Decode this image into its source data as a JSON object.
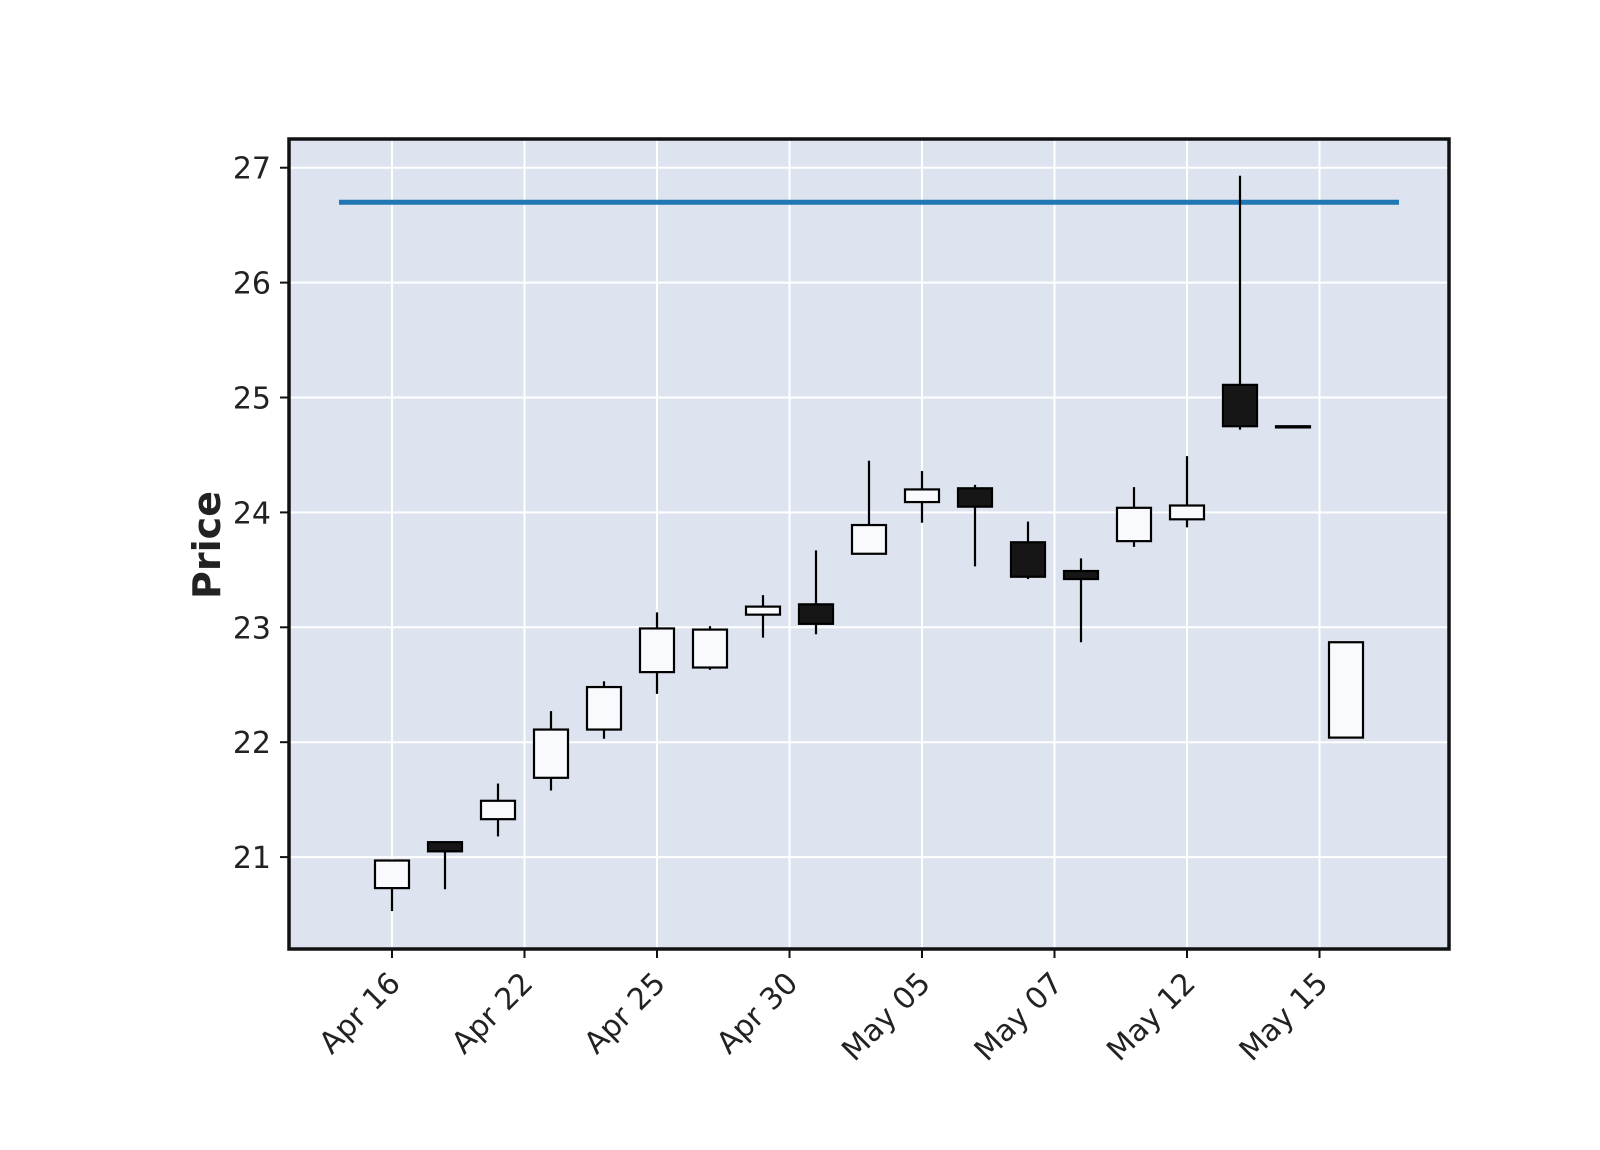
{
  "chart_data": {
    "type": "candlestick",
    "title": "",
    "xlabel": "",
    "ylabel": "Price",
    "ylim": [
      20.2,
      27.25
    ],
    "grid": true,
    "colors": {
      "background": "#dde3ef",
      "grid": "#ffffff",
      "up_fill": "#f8fafd",
      "down_fill": "#161616",
      "edge": "#000000",
      "hline": "#1f77b4"
    },
    "x_tick_labels": [
      "Apr 16",
      "Apr 22",
      "Apr 25",
      "Apr 30",
      "May 05",
      "May 07",
      "May 12",
      "May 15"
    ],
    "x_tick_indices": [
      0,
      2.5,
      5,
      7.5,
      10,
      12.5,
      15,
      17.5
    ],
    "y_ticks": [
      21,
      22,
      23,
      24,
      25,
      26,
      27
    ],
    "hline": {
      "value": 26.7
    },
    "candles": [
      {
        "open": 20.73,
        "high": 20.97,
        "low": 20.53,
        "close": 20.97
      },
      {
        "open": 21.13,
        "high": 21.13,
        "low": 20.72,
        "close": 21.05
      },
      {
        "open": 21.33,
        "high": 21.64,
        "low": 21.18,
        "close": 21.49
      },
      {
        "open": 21.69,
        "high": 22.27,
        "low": 21.58,
        "close": 22.11
      },
      {
        "open": 22.11,
        "high": 22.53,
        "low": 22.03,
        "close": 22.48
      },
      {
        "open": 22.61,
        "high": 23.13,
        "low": 22.42,
        "close": 22.99
      },
      {
        "open": 22.65,
        "high": 23.01,
        "low": 22.63,
        "close": 22.98
      },
      {
        "open": 23.11,
        "high": 23.28,
        "low": 22.91,
        "close": 23.18
      },
      {
        "open": 23.2,
        "high": 23.67,
        "low": 22.94,
        "close": 23.03
      },
      {
        "open": 23.64,
        "high": 24.45,
        "low": 23.64,
        "close": 23.89
      },
      {
        "open": 24.09,
        "high": 24.36,
        "low": 23.91,
        "close": 24.2
      },
      {
        "open": 24.21,
        "high": 24.24,
        "low": 23.53,
        "close": 24.05
      },
      {
        "open": 23.74,
        "high": 23.92,
        "low": 23.42,
        "close": 23.44
      },
      {
        "open": 23.49,
        "high": 23.6,
        "low": 22.87,
        "close": 23.42
      },
      {
        "open": 23.75,
        "high": 24.22,
        "low": 23.7,
        "close": 24.04
      },
      {
        "open": 23.94,
        "high": 24.49,
        "low": 23.87,
        "close": 24.06
      },
      {
        "open": 25.11,
        "high": 26.93,
        "low": 24.72,
        "close": 24.75
      },
      {
        "open": 24.75,
        "high": 24.75,
        "low": 24.75,
        "close": 24.75
      },
      {
        "open": 22.04,
        "high": 22.87,
        "low": 22.04,
        "close": 22.87
      }
    ]
  }
}
